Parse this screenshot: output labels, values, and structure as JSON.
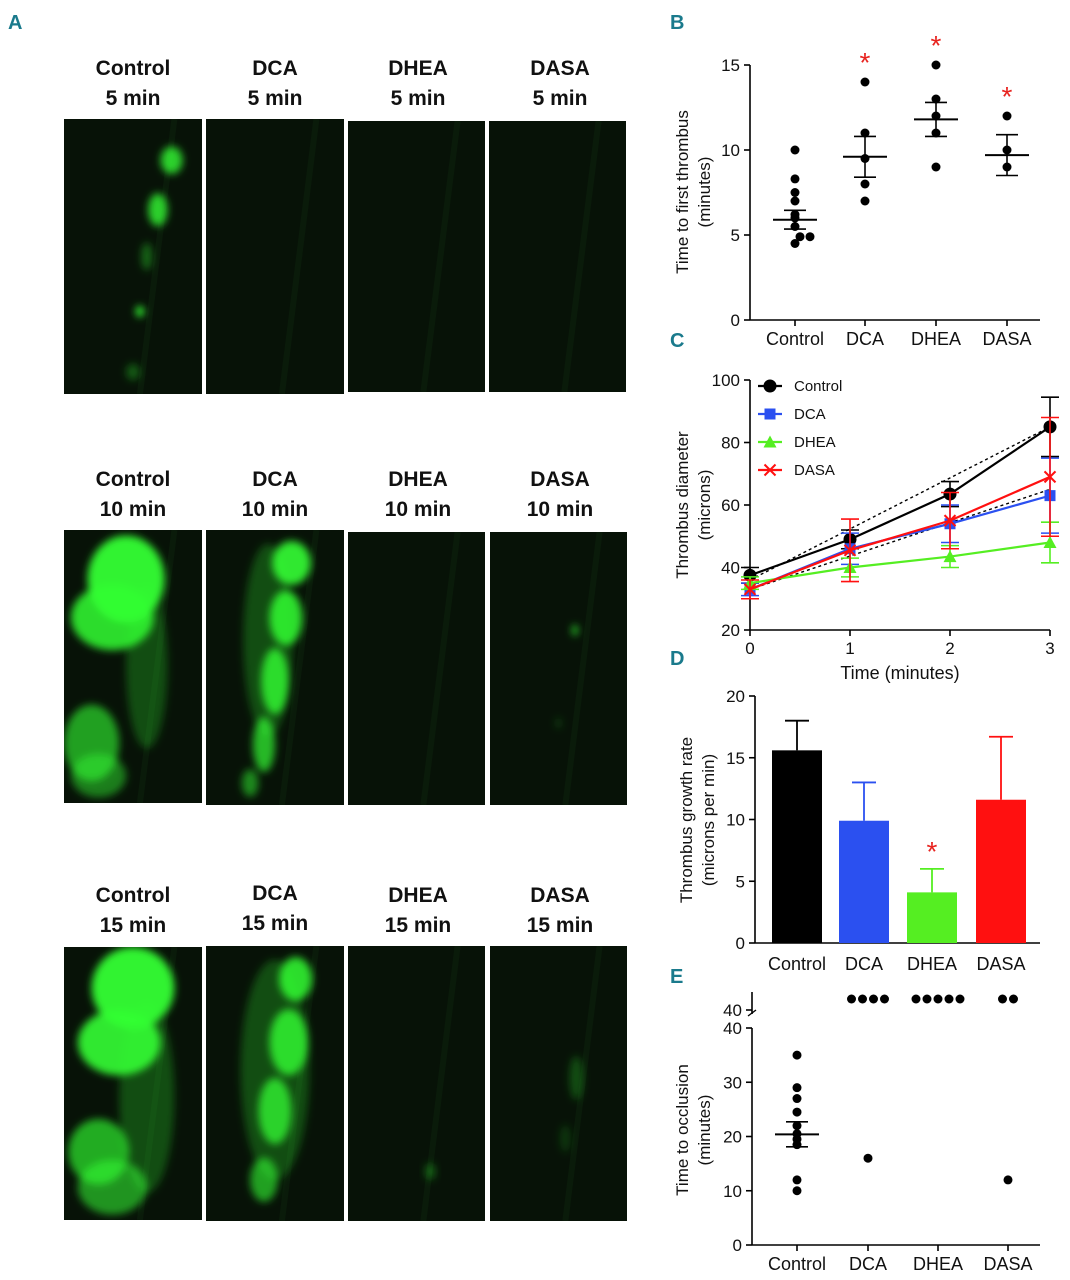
{
  "panels": {
    "A": "A",
    "B": "B",
    "C": "C",
    "D": "D",
    "E": "E"
  },
  "micrographs": {
    "rows": [
      {
        "cells": [
          {
            "line1": "Control",
            "line2": "5 min",
            "signal": "control-5"
          },
          {
            "line1": "DCA",
            "line2": "5 min",
            "signal": "dim"
          },
          {
            "line1": "DHEA",
            "line2": "5 min",
            "signal": "dim"
          },
          {
            "line1": "DASA",
            "line2": "5 min",
            "signal": "dim"
          }
        ]
      },
      {
        "cells": [
          {
            "line1": "Control",
            "line2": "10 min",
            "signal": "control-10"
          },
          {
            "line1": "DCA",
            "line2": "10 min",
            "signal": "dca-10"
          },
          {
            "line1": "DHEA",
            "line2": "10 min",
            "signal": "dim"
          },
          {
            "line1": "DASA",
            "line2": "10 min",
            "signal": "dasa-10"
          }
        ]
      },
      {
        "cells": [
          {
            "line1": "Control",
            "line2": "15 min",
            "signal": "control-15"
          },
          {
            "line1": "DCA",
            "line2": "15 min",
            "signal": "dca-15"
          },
          {
            "line1": "DHEA",
            "line2": "15 min",
            "signal": "dhea-15"
          },
          {
            "line1": "DASA",
            "line2": "15 min",
            "signal": "dasa-15"
          }
        ]
      }
    ]
  },
  "colors": {
    "control": "#000000",
    "dca": "#2b50f0",
    "dhea": "#55ee22",
    "dasa": "#ff1010",
    "significance": "#e8231f",
    "panel_letter": "#1a7a8c",
    "fluorescence": "#33ff33"
  },
  "chart_data": [
    {
      "panel": "B",
      "type": "scatter",
      "ylabel": [
        "Time to first thrombus",
        "(minutes)"
      ],
      "ylim": [
        0,
        15
      ],
      "yticks": [
        0,
        5,
        10,
        15
      ],
      "categories": [
        "Control",
        "DCA",
        "DHEA",
        "DASA"
      ],
      "points": [
        [
          10,
          8.3,
          7.5,
          7,
          6.2,
          6.0,
          5.5,
          4.9,
          4.9,
          4.5
        ],
        [
          14,
          11,
          9.5,
          8,
          7
        ],
        [
          15,
          13,
          12,
          11,
          9
        ],
        [
          12,
          10,
          9
        ]
      ],
      "mean": [
        5.9,
        9.6,
        11.8,
        9.7
      ],
      "sem": [
        0.55,
        1.2,
        1.0,
        1.2
      ],
      "significant": [
        false,
        true,
        true,
        true
      ],
      "significance_mark": "*"
    },
    {
      "panel": "C",
      "type": "line",
      "xlabel": "Time (minutes)",
      "ylabel": [
        "Thrombus diameter",
        "(microns)"
      ],
      "xlim": [
        0,
        3
      ],
      "ylim": [
        20,
        100
      ],
      "xticks": [
        0,
        1,
        2,
        3
      ],
      "yticks": [
        20,
        40,
        60,
        80,
        100
      ],
      "legend_position": "top-left",
      "series": [
        {
          "name": "Control",
          "marker": "circle",
          "x": [
            0,
            1,
            2,
            3
          ],
          "y": [
            37.5,
            49,
            63.5,
            85
          ],
          "err": [
            2.5,
            3,
            4,
            9.5
          ]
        },
        {
          "name": "DCA",
          "marker": "square",
          "x": [
            0,
            1,
            2,
            3
          ],
          "y": [
            33,
            46,
            54,
            63
          ],
          "err": [
            2,
            5,
            6,
            12
          ]
        },
        {
          "name": "DHEA",
          "marker": "triangle",
          "x": [
            0,
            1,
            2,
            3
          ],
          "y": [
            35,
            40,
            43.5,
            48
          ],
          "err": [
            2,
            3,
            3.5,
            6.5
          ]
        },
        {
          "name": "DASA",
          "marker": "x",
          "x": [
            0,
            1,
            2,
            3
          ],
          "y": [
            33,
            45.5,
            55,
            69
          ],
          "err": [
            3,
            10,
            9,
            19
          ]
        }
      ],
      "trend_lines": [
        {
          "from": [
            0,
            36
          ],
          "to": [
            3,
            85
          ]
        },
        {
          "from": [
            0,
            33
          ],
          "to": [
            3,
            65
          ]
        }
      ]
    },
    {
      "panel": "D",
      "type": "bar",
      "ylabel": [
        "Thrombus growth rate",
        "(microns per min)"
      ],
      "ylim": [
        0,
        20
      ],
      "yticks": [
        0,
        5,
        10,
        15,
        20
      ],
      "categories": [
        "Control",
        "DCA",
        "DHEA",
        "DASA"
      ],
      "values": [
        15.6,
        9.9,
        4.1,
        11.6
      ],
      "err": [
        2.4,
        3.1,
        1.9,
        5.1
      ],
      "significant": [
        false,
        false,
        true,
        false
      ],
      "significance_mark": "*"
    },
    {
      "panel": "E",
      "type": "scatter",
      "ylabel": [
        "Time to occlusion",
        "(minutes)"
      ],
      "ylim": [
        0,
        40
      ],
      "yticks": [
        0,
        10,
        20,
        30,
        40
      ],
      "broken_axis_tick": 40,
      "categories": [
        "Control",
        "DCA",
        "DHEA",
        "DASA"
      ],
      "points": [
        [
          35,
          29,
          27,
          24.5,
          22,
          20.5,
          19.5,
          18.5,
          12,
          10
        ],
        [
          16
        ],
        [],
        [
          12
        ]
      ],
      "not_occluded_counts": [
        0,
        4,
        5,
        2
      ],
      "mean": [
        20.4,
        null,
        null,
        null
      ],
      "sem": [
        2.3,
        null,
        null,
        null
      ]
    }
  ]
}
